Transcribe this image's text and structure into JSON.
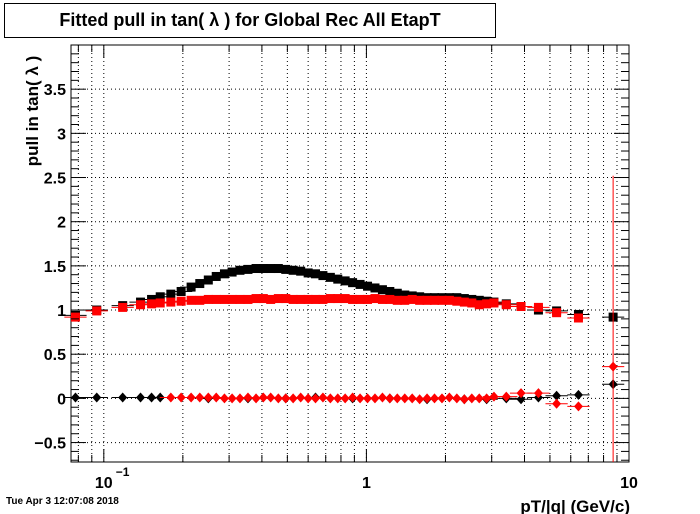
{
  "timestamp": "Tue Apr  3 12:07:08 2018",
  "chart_data": {
    "type": "scatter",
    "title": "Fitted pull in tan( λ ) for Global Rec All EtapT",
    "xlabel": "pT/|q| (GeV/c)",
    "ylabel": "pull in tan( λ )",
    "xscale": "log",
    "xlim": [
      0.075,
      10
    ],
    "ylim": [
      -0.72,
      4.0
    ],
    "grid": true,
    "x_tick_labels": [
      "10",
      "1",
      "10"
    ],
    "x_tick_label_exponents": [
      "−1",
      "",
      ""
    ],
    "y_tick_labels": [
      "−0.5",
      "0",
      "0.5",
      "1",
      "1.5",
      "2",
      "2.5",
      "3",
      "3.5"
    ],
    "series": [
      {
        "marker": "square",
        "color": "#000000",
        "points": [
          [
            0.078,
            0.94
          ],
          [
            0.094,
            1.0
          ],
          [
            0.118,
            1.05
          ],
          [
            0.138,
            1.09
          ],
          [
            0.152,
            1.12
          ],
          [
            0.164,
            1.15
          ],
          [
            0.18,
            1.18
          ],
          [
            0.197,
            1.21
          ],
          [
            0.215,
            1.26
          ],
          [
            0.232,
            1.3
          ],
          [
            0.25,
            1.34
          ],
          [
            0.268,
            1.38
          ],
          [
            0.288,
            1.41
          ],
          [
            0.308,
            1.43
          ],
          [
            0.33,
            1.45
          ],
          [
            0.354,
            1.46
          ],
          [
            0.38,
            1.47
          ],
          [
            0.405,
            1.47
          ],
          [
            0.432,
            1.47
          ],
          [
            0.462,
            1.47
          ],
          [
            0.493,
            1.46
          ],
          [
            0.526,
            1.45
          ],
          [
            0.562,
            1.44
          ],
          [
            0.6,
            1.42
          ],
          [
            0.64,
            1.41
          ],
          [
            0.683,
            1.39
          ],
          [
            0.729,
            1.37
          ],
          [
            0.778,
            1.35
          ],
          [
            0.83,
            1.33
          ],
          [
            0.886,
            1.31
          ],
          [
            0.946,
            1.29
          ],
          [
            1.01,
            1.27
          ],
          [
            1.078,
            1.25
          ],
          [
            1.151,
            1.23
          ],
          [
            1.228,
            1.21
          ],
          [
            1.311,
            1.19
          ],
          [
            1.4,
            1.17
          ],
          [
            1.494,
            1.16
          ],
          [
            1.595,
            1.15
          ],
          [
            1.702,
            1.14
          ],
          [
            1.817,
            1.14
          ],
          [
            1.94,
            1.14
          ],
          [
            2.07,
            1.14
          ],
          [
            2.21,
            1.14
          ],
          [
            2.36,
            1.13
          ],
          [
            2.52,
            1.12
          ],
          [
            2.69,
            1.11
          ],
          [
            2.87,
            1.1
          ],
          [
            3.06,
            1.09
          ],
          [
            3.41,
            1.07
          ],
          [
            3.88,
            1.04
          ],
          [
            4.52,
            1.0
          ],
          [
            5.3,
            0.99
          ],
          [
            6.42,
            0.95
          ],
          [
            8.7,
            0.92
          ]
        ]
      },
      {
        "marker": "square",
        "color": "#ff0000",
        "points": [
          [
            0.078,
            0.92
          ],
          [
            0.094,
            0.99
          ],
          [
            0.118,
            1.03
          ],
          [
            0.138,
            1.06
          ],
          [
            0.152,
            1.07
          ],
          [
            0.164,
            1.08
          ],
          [
            0.18,
            1.09
          ],
          [
            0.197,
            1.1
          ],
          [
            0.215,
            1.11
          ],
          [
            0.232,
            1.11
          ],
          [
            0.25,
            1.12
          ],
          [
            0.268,
            1.12
          ],
          [
            0.288,
            1.12
          ],
          [
            0.308,
            1.12
          ],
          [
            0.33,
            1.12
          ],
          [
            0.354,
            1.12
          ],
          [
            0.38,
            1.13
          ],
          [
            0.405,
            1.13
          ],
          [
            0.432,
            1.12
          ],
          [
            0.462,
            1.13
          ],
          [
            0.493,
            1.13
          ],
          [
            0.526,
            1.12
          ],
          [
            0.562,
            1.12
          ],
          [
            0.6,
            1.12
          ],
          [
            0.64,
            1.12
          ],
          [
            0.683,
            1.12
          ],
          [
            0.729,
            1.13
          ],
          [
            0.778,
            1.13
          ],
          [
            0.83,
            1.13
          ],
          [
            0.886,
            1.12
          ],
          [
            0.946,
            1.12
          ],
          [
            1.01,
            1.12
          ],
          [
            1.078,
            1.13
          ],
          [
            1.151,
            1.12
          ],
          [
            1.228,
            1.12
          ],
          [
            1.311,
            1.11
          ],
          [
            1.4,
            1.11
          ],
          [
            1.494,
            1.12
          ],
          [
            1.595,
            1.11
          ],
          [
            1.702,
            1.11
          ],
          [
            1.817,
            1.11
          ],
          [
            1.94,
            1.11
          ],
          [
            2.07,
            1.11
          ],
          [
            2.21,
            1.1
          ],
          [
            2.36,
            1.09
          ],
          [
            2.52,
            1.08
          ],
          [
            2.69,
            1.06
          ],
          [
            2.87,
            1.07
          ],
          [
            3.06,
            1.08
          ],
          [
            3.41,
            1.06
          ],
          [
            3.88,
            1.04
          ],
          [
            4.52,
            1.03
          ],
          [
            5.3,
            0.97
          ],
          [
            6.42,
            0.91
          ]
        ]
      },
      {
        "marker": "diamond",
        "color": "#000000",
        "points": [
          [
            0.078,
            0.01
          ],
          [
            0.094,
            0.01
          ],
          [
            0.118,
            0.01
          ],
          [
            0.138,
            0.01
          ],
          [
            0.152,
            0.01
          ],
          [
            0.164,
            0.01
          ],
          [
            0.25,
            0.0
          ],
          [
            0.354,
            0.0
          ],
          [
            0.493,
            0.0
          ],
          [
            0.64,
            0.01
          ],
          [
            0.886,
            0.0
          ],
          [
            1.228,
            0.0
          ],
          [
            1.702,
            -0.01
          ],
          [
            2.36,
            -0.01
          ],
          [
            2.87,
            -0.01
          ],
          [
            3.41,
            0.0
          ],
          [
            3.88,
            -0.01
          ],
          [
            4.52,
            0.01
          ],
          [
            5.3,
            0.03
          ],
          [
            6.42,
            0.04
          ],
          [
            8.7,
            0.16
          ]
        ]
      },
      {
        "marker": "diamond",
        "color": "#ff0000",
        "points": [
          [
            0.18,
            0.01
          ],
          [
            0.197,
            0.01
          ],
          [
            0.215,
            0.01
          ],
          [
            0.232,
            0.01
          ],
          [
            0.25,
            0.01
          ],
          [
            0.268,
            0.01
          ],
          [
            0.288,
            0.0
          ],
          [
            0.308,
            0.0
          ],
          [
            0.33,
            0.0
          ],
          [
            0.354,
            0.01
          ],
          [
            0.38,
            0.0
          ],
          [
            0.405,
            0.01
          ],
          [
            0.432,
            0.01
          ],
          [
            0.462,
            0.0
          ],
          [
            0.493,
            0.0
          ],
          [
            0.526,
            0.0
          ],
          [
            0.562,
            0.01
          ],
          [
            0.6,
            0.0
          ],
          [
            0.64,
            0.0
          ],
          [
            0.683,
            0.01
          ],
          [
            0.729,
            0.0
          ],
          [
            0.778,
            0.0
          ],
          [
            0.83,
            0.0
          ],
          [
            0.886,
            0.01
          ],
          [
            0.946,
            0.0
          ],
          [
            1.01,
            0.0
          ],
          [
            1.078,
            0.0
          ],
          [
            1.151,
            0.01
          ],
          [
            1.228,
            0.0
          ],
          [
            1.311,
            0.0
          ],
          [
            1.4,
            0.0
          ],
          [
            1.494,
            0.0
          ],
          [
            1.595,
            -0.01
          ],
          [
            1.702,
            0.0
          ],
          [
            1.817,
            0.0
          ],
          [
            1.94,
            0.0
          ],
          [
            2.07,
            0.01
          ],
          [
            2.21,
            0.0
          ],
          [
            2.36,
            -0.01
          ],
          [
            2.52,
            0.0
          ],
          [
            2.69,
            0.0
          ],
          [
            2.87,
            0.0
          ],
          [
            3.06,
            0.02
          ],
          [
            3.41,
            0.02
          ],
          [
            3.88,
            0.06
          ],
          [
            4.52,
            0.06
          ],
          [
            5.3,
            -0.06
          ],
          [
            6.42,
            -0.09
          ],
          [
            8.7,
            0.36
          ]
        ],
        "error_bar": {
          "x": 8.7,
          "ylow": -0.72,
          "yhigh": 2.52
        }
      }
    ]
  }
}
